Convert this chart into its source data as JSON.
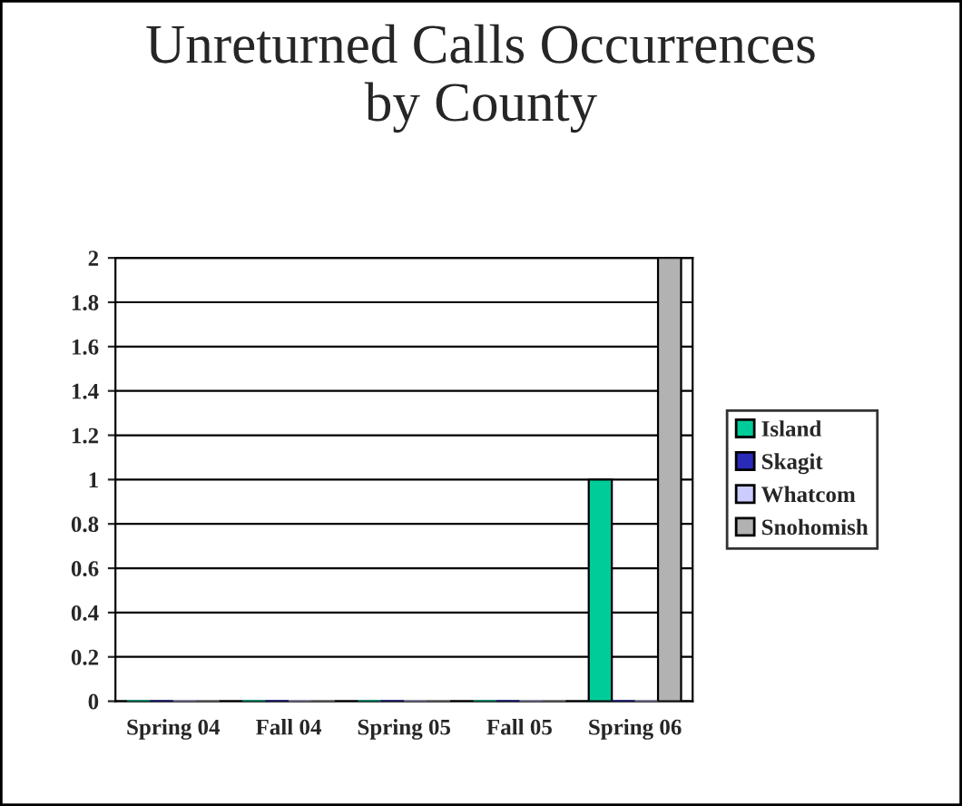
{
  "chart_data": {
    "type": "bar",
    "title": "Unreturned Calls Occurrences\nby County",
    "categories": [
      "Spring 04",
      "Fall 04",
      "Spring 05",
      "Fall 05",
      "Spring 06"
    ],
    "series": [
      {
        "name": "Island",
        "color": "#00cc99",
        "values": [
          0,
          0,
          0,
          0,
          1
        ]
      },
      {
        "name": "Skagit",
        "color": "#2a2ab8",
        "values": [
          0,
          0,
          0,
          0,
          0
        ]
      },
      {
        "name": "Whatcom",
        "color": "#ccccff",
        "values": [
          0,
          0,
          0,
          0,
          0
        ]
      },
      {
        "name": "Snohomish",
        "color": "#b2b2b2",
        "values": [
          0,
          0,
          0,
          0,
          2
        ]
      }
    ],
    "ylim": [
      0,
      2
    ],
    "yticks": [
      0,
      0.2,
      0.4,
      0.6,
      0.8,
      1,
      1.2,
      1.4,
      1.6,
      1.8,
      2
    ],
    "grid": "y",
    "legend": "right"
  }
}
